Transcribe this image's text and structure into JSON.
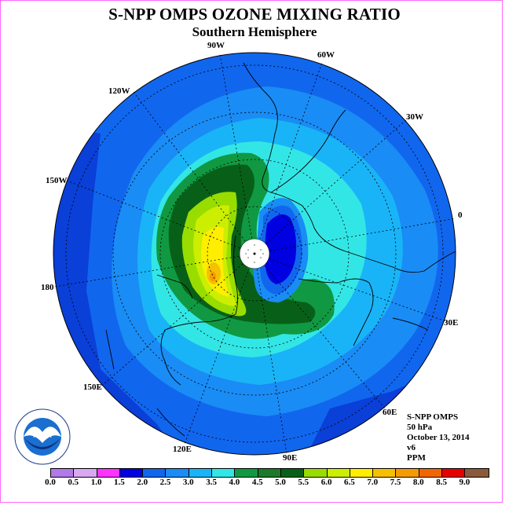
{
  "title": "S-NPP OMPS OZONE MIXING RATIO",
  "subtitle": "Southern Hemisphere",
  "longitude_labels": [
    "90W",
    "60W",
    "30W",
    "0",
    "30E",
    "60E",
    "90E",
    "120E",
    "150E",
    "180",
    "150W",
    "120W"
  ],
  "info": {
    "instrument": "S-NPP OMPS",
    "level": "50 hPa",
    "date": "October 13, 2014",
    "version": "v6",
    "units": "PPM"
  },
  "logo": {
    "name": "NOAA",
    "ring_text": "NATIONAL OCEANIC AND ATMOSPHERIC ADMINISTRATION · U.S. DEPARTMENT OF COMMERCE"
  },
  "colorbar": {
    "labels": [
      "0.0",
      "0.5",
      "1.0",
      "1.5",
      "2.0",
      "2.5",
      "3.0",
      "3.5",
      "4.0",
      "4.5",
      "5.0",
      "5.5",
      "6.0",
      "6.5",
      "7.0",
      "7.5",
      "8.0",
      "8.5",
      "9.0"
    ],
    "colors": [
      "#b07ae8",
      "#d8a8f0",
      "#ff33ff",
      "#0000e0",
      "#1166ee",
      "#1a8cf5",
      "#19b4f7",
      "#33e6e6",
      "#109942",
      "#1d7a2a",
      "#086018",
      "#99dd00",
      "#ccee00",
      "#ffee00",
      "#f5c000",
      "#f59a00",
      "#f26600",
      "#e60000",
      "#8b5a3c"
    ]
  }
}
